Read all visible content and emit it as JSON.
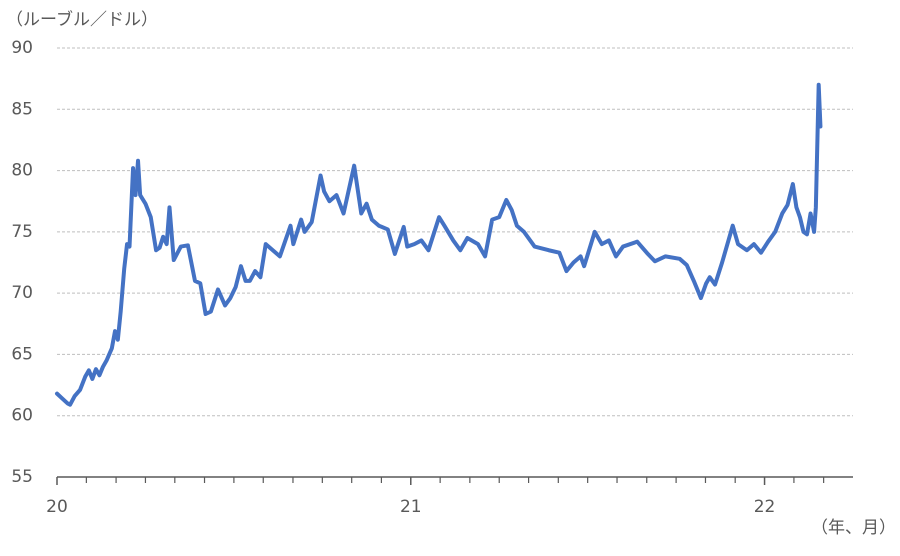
{
  "chart_data": {
    "type": "line",
    "y_label": "（ルーブル／ドル）",
    "x_label": "（年、月）",
    "xlim": [
      20,
      22.25
    ],
    "xticks": [
      20,
      21,
      22
    ],
    "xminorticks": [
      20.083,
      20.167,
      20.25,
      20.333,
      20.417,
      20.5,
      20.583,
      20.667,
      20.75,
      20.833,
      20.917,
      21.083,
      21.167,
      21.25,
      21.333,
      21.417,
      21.5,
      21.583,
      21.667,
      21.75,
      21.833,
      21.917,
      22.083,
      22.167
    ],
    "ylim": [
      55,
      90
    ],
    "yticks": [
      55,
      60,
      65,
      70,
      75,
      80,
      85,
      90
    ],
    "grid": true,
    "series": [
      {
        "color": "#4472c4",
        "x": [
          20.0,
          20.015,
          20.03,
          20.037,
          20.05,
          20.065,
          20.08,
          20.09,
          20.1,
          20.11,
          20.12,
          20.13,
          20.14,
          20.155,
          20.164,
          20.172,
          20.18,
          20.19,
          20.198,
          20.205,
          20.215,
          20.222,
          20.229,
          20.235,
          20.25,
          20.265,
          20.28,
          20.29,
          20.3,
          20.31,
          20.318,
          20.33,
          20.35,
          20.37,
          20.39,
          20.405,
          20.42,
          20.435,
          20.455,
          20.475,
          20.49,
          20.505,
          20.52,
          20.533,
          20.545,
          20.56,
          20.575,
          20.59,
          20.61,
          20.63,
          20.66,
          20.668,
          20.69,
          20.7,
          20.72,
          20.745,
          20.755,
          20.77,
          20.79,
          20.81,
          20.84,
          20.86,
          20.875,
          20.89,
          20.91,
          20.935,
          20.955,
          20.98,
          20.99,
          21.01,
          21.03,
          21.05,
          21.08,
          21.095,
          21.12,
          21.14,
          21.16,
          21.19,
          21.21,
          21.23,
          21.25,
          21.27,
          21.285,
          21.3,
          21.32,
          21.35,
          21.39,
          21.42,
          21.44,
          21.46,
          21.48,
          21.49,
          21.52,
          21.54,
          21.56,
          21.58,
          21.6,
          21.64,
          21.67,
          21.69,
          21.72,
          21.76,
          21.78,
          21.8,
          21.82,
          21.835,
          21.845,
          21.86,
          21.88,
          21.91,
          21.925,
          21.95,
          21.97,
          21.99,
          22.01,
          22.03,
          22.05,
          22.065,
          22.08,
          22.09,
          22.1,
          22.11,
          22.12,
          22.13,
          22.14,
          22.145,
          22.153,
          22.158
        ],
        "values": [
          61.8,
          61.4,
          61.0,
          60.9,
          61.6,
          62.1,
          63.2,
          63.7,
          63.0,
          63.8,
          63.3,
          64.0,
          64.5,
          65.5,
          66.9,
          66.2,
          68.5,
          72.0,
          74.0,
          73.8,
          80.2,
          78.0,
          80.8,
          78.0,
          77.3,
          76.2,
          73.5,
          73.7,
          74.6,
          74.0,
          77.0,
          72.7,
          73.8,
          73.9,
          71.0,
          70.8,
          68.3,
          68.5,
          70.3,
          69.0,
          69.6,
          70.5,
          72.2,
          71.0,
          71.0,
          71.8,
          71.3,
          74.0,
          73.5,
          73.0,
          75.5,
          74.0,
          76.0,
          75.0,
          75.8,
          79.6,
          78.3,
          77.5,
          78.0,
          76.5,
          80.4,
          76.5,
          77.3,
          76.0,
          75.5,
          75.2,
          73.2,
          75.4,
          73.8,
          74.0,
          74.3,
          73.5,
          76.2,
          75.5,
          74.3,
          73.5,
          74.5,
          74.0,
          73.0,
          76.0,
          76.2,
          77.6,
          76.8,
          75.5,
          75.0,
          73.8,
          73.5,
          73.3,
          71.8,
          72.5,
          73.0,
          72.2,
          75.0,
          74.0,
          74.3,
          73.0,
          73.8,
          74.2,
          73.2,
          72.6,
          73.0,
          72.8,
          72.3,
          71.0,
          69.6,
          70.8,
          71.3,
          70.7,
          72.5,
          75.5,
          74.0,
          73.5,
          74.0,
          73.3,
          74.2,
          75.0,
          76.5,
          77.2,
          78.9,
          77.0,
          76.2,
          75.0,
          74.8,
          76.5,
          75.0,
          77.0,
          87.0,
          83.6
        ]
      }
    ]
  }
}
